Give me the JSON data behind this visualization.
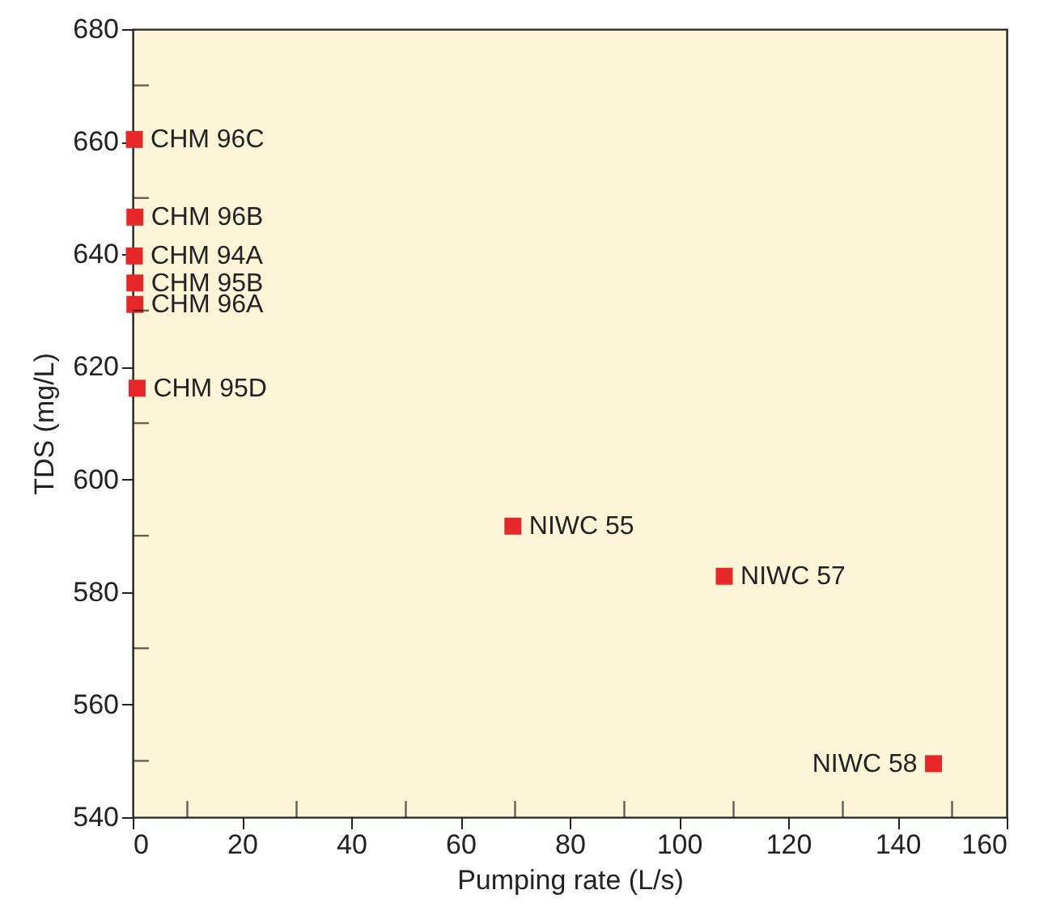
{
  "chart_data": {
    "type": "scatter",
    "xlabel": "Pumping rate (L/s)",
    "ylabel": "TDS (mg/L)",
    "x": [
      0.3,
      0.4,
      0.3,
      0.4,
      0.4,
      0.8,
      69.6,
      108.3,
      146.6
    ],
    "series": [
      {
        "color": "#e8272a",
        "values": [
          660.4,
          646.6,
          639.7,
          634.9,
          631.1,
          616.2,
          591.7,
          582.8,
          549.5
        ]
      }
    ],
    "marker": "square",
    "grid": false,
    "legend": false,
    "xlim": [
      0,
      160
    ],
    "ylim": [
      540,
      680
    ],
    "xticks": [
      0,
      {
        "value": 10,
        "label": null
      },
      20,
      {
        "value": 30,
        "label": null
      },
      40,
      {
        "value": 50,
        "label": null
      },
      60,
      {
        "value": 70,
        "label": null
      },
      80,
      {
        "value": 90,
        "label": null
      },
      100,
      {
        "value": 110,
        "label": null
      },
      120,
      {
        "value": 130,
        "label": null
      },
      140,
      {
        "value": 150,
        "label": null
      },
      160
    ],
    "yticks": [
      540,
      {
        "value": 550,
        "label": null
      },
      560,
      {
        "value": 570,
        "label": null
      },
      580,
      {
        "value": 590,
        "label": null
      },
      600,
      {
        "value": 610,
        "label": null
      },
      620,
      {
        "value": 630,
        "label": null
      },
      640,
      {
        "value": 650,
        "label": null
      },
      660,
      {
        "value": 670,
        "label": null
      },
      680
    ],
    "annotations": [
      {
        "text": "CHM 96C",
        "x": 0.3,
        "y": 660.4
      },
      {
        "text": "CHM 96B",
        "x": 0.4,
        "y": 646.6
      },
      {
        "text": "CHM 94A",
        "x": 0.3,
        "y": 639.7
      },
      {
        "text": "CHM 95B",
        "x": 0.4,
        "y": 634.9
      },
      {
        "text": "CHM 96A",
        "x": 0.4,
        "y": 631.1
      },
      {
        "text": "CHM 95D",
        "x": 0.8,
        "y": 616.2
      },
      {
        "text": "NIWC 55",
        "x": 69.6,
        "y": 591.7
      },
      {
        "text": "NIWC 57",
        "x": 108.3,
        "y": 582.8
      },
      {
        "text": "NIWC 58",
        "x": 146.6,
        "y": 549.5
      }
    ]
  }
}
